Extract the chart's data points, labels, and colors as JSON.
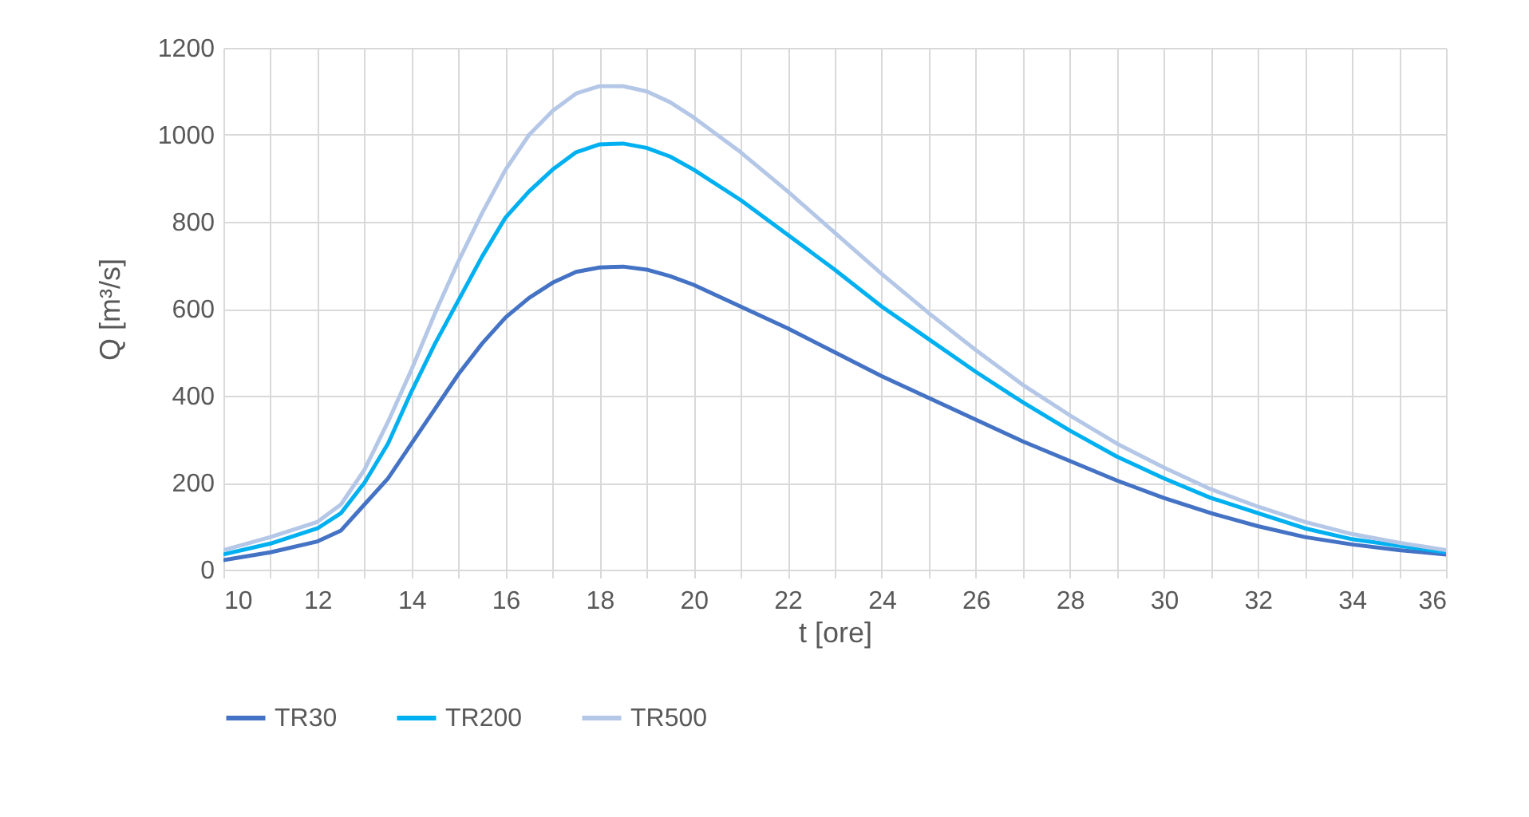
{
  "chart_data": {
    "type": "line",
    "xlabel": "t [ore]",
    "ylabel": "Q [m³/s]",
    "x": [
      10,
      11,
      12,
      12.5,
      13,
      13.5,
      14,
      14.5,
      15,
      15.5,
      16,
      16.5,
      17,
      17.5,
      18,
      18.5,
      19,
      19.5,
      20,
      21,
      22,
      23,
      24,
      25,
      26,
      27,
      28,
      29,
      30,
      31,
      32,
      33,
      34,
      35,
      36
    ],
    "series": [
      {
        "name": "TR30",
        "color": "#4472c4",
        "values": [
          22,
          40,
          65,
          90,
          150,
          210,
          290,
          370,
          450,
          520,
          580,
          625,
          660,
          685,
          695,
          697,
          690,
          675,
          655,
          605,
          555,
          500,
          445,
          395,
          345,
          295,
          250,
          205,
          165,
          130,
          100,
          75,
          58,
          45,
          35
        ]
      },
      {
        "name": "TR200",
        "color": "#00b0f0",
        "values": [
          35,
          60,
          95,
          130,
          200,
          290,
          410,
          520,
          620,
          720,
          810,
          870,
          920,
          960,
          978,
          980,
          970,
          950,
          920,
          850,
          770,
          690,
          605,
          530,
          455,
          385,
          320,
          260,
          210,
          165,
          130,
          95,
          70,
          55,
          40
        ]
      },
      {
        "name": "TR500",
        "color": "#b4c7e7",
        "values": [
          45,
          75,
          110,
          150,
          230,
          340,
          460,
          590,
          710,
          820,
          920,
          1000,
          1055,
          1095,
          1112,
          1112,
          1100,
          1075,
          1040,
          960,
          870,
          775,
          680,
          590,
          505,
          425,
          355,
          290,
          235,
          185,
          145,
          110,
          82,
          62,
          45
        ]
      }
    ],
    "xlim": [
      10,
      36
    ],
    "xticks": [
      10,
      {
        "value": 11,
        "label": null
      },
      12,
      {
        "value": 13,
        "label": null
      },
      14,
      {
        "value": 15,
        "label": null
      },
      16,
      {
        "value": 17,
        "label": null
      },
      18,
      {
        "value": 19,
        "label": null
      },
      20,
      {
        "value": 21,
        "label": null
      },
      22,
      {
        "value": 23,
        "label": null
      },
      24,
      {
        "value": 25,
        "label": null
      },
      26,
      {
        "value": 27,
        "label": null
      },
      28,
      {
        "value": 29,
        "label": null
      },
      30,
      {
        "value": 31,
        "label": null
      },
      32,
      {
        "value": 33,
        "label": null
      },
      34,
      {
        "value": 35,
        "label": null
      },
      36
    ],
    "ylim": [
      0,
      1200
    ],
    "yticks": [
      0,
      200,
      400,
      600,
      800,
      1000,
      1200
    ],
    "grid": true,
    "legend": "bottom",
    "marker": "none",
    "line_style": "solid"
  }
}
